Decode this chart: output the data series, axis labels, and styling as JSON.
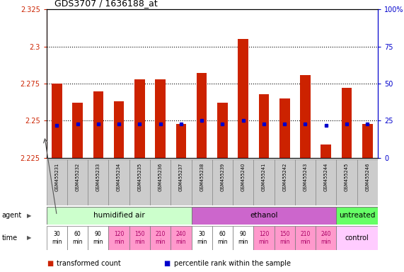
{
  "title": "GDS3707 / 1636188_at",
  "samples": [
    "GSM455231",
    "GSM455232",
    "GSM455233",
    "GSM455234",
    "GSM455235",
    "GSM455236",
    "GSM455237",
    "GSM455238",
    "GSM455239",
    "GSM455240",
    "GSM455241",
    "GSM455242",
    "GSM455243",
    "GSM455244",
    "GSM455245",
    "GSM455246"
  ],
  "transformed_count": [
    2.275,
    2.262,
    2.27,
    2.263,
    2.278,
    2.278,
    2.248,
    2.282,
    2.262,
    2.305,
    2.268,
    2.265,
    2.281,
    2.234,
    2.272,
    2.248
  ],
  "percentile_rank": [
    22,
    23,
    23,
    23,
    23,
    23,
    23,
    25,
    23,
    25,
    23,
    23,
    23,
    22,
    23,
    23
  ],
  "ylim_left": [
    2.225,
    2.325
  ],
  "ylim_right": [
    0,
    100
  ],
  "yticks_left": [
    2.225,
    2.25,
    2.275,
    2.3,
    2.325
  ],
  "yticks_right": [
    0,
    25,
    50,
    75,
    100
  ],
  "ytick_labels_left": [
    "2.225",
    "2.25",
    "2.275",
    "2.3",
    "2.325"
  ],
  "ytick_labels_right": [
    "0",
    "25",
    "50",
    "75",
    "100%"
  ],
  "hlines": [
    2.25,
    2.275,
    2.3
  ],
  "bar_color": "#cc2200",
  "dot_color": "#0000cc",
  "bar_width": 0.5,
  "agent_groups": [
    {
      "label": "humidified air",
      "start": 0,
      "end": 7,
      "color": "#ccffcc"
    },
    {
      "label": "ethanol",
      "start": 7,
      "end": 14,
      "color": "#cc66cc"
    },
    {
      "label": "untreated",
      "start": 14,
      "end": 16,
      "color": "#66ff66"
    }
  ],
  "time_labels": [
    "30\nmin",
    "60\nmin",
    "90\nmin",
    "120\nmin",
    "150\nmin",
    "210\nmin",
    "240\nmin",
    "30\nmin",
    "60\nmin",
    "90\nmin",
    "120\nmin",
    "150\nmin",
    "210\nmin",
    "240\nmin"
  ],
  "time_cell_colors": [
    "#ffffff",
    "#ffffff",
    "#ffffff",
    "#ff99cc",
    "#ff99cc",
    "#ff99cc",
    "#ff99cc",
    "#ffffff",
    "#ffffff",
    "#ffffff",
    "#ff99cc",
    "#ff99cc",
    "#ff99cc",
    "#ff99cc"
  ],
  "time_label_colors": [
    "#000000",
    "#000000",
    "#000000",
    "#aa0066",
    "#aa0066",
    "#aa0066",
    "#aa0066",
    "#000000",
    "#000000",
    "#000000",
    "#aa0066",
    "#aa0066",
    "#aa0066",
    "#aa0066"
  ],
  "control_label": "control",
  "control_color": "#ffccff",
  "legend_items": [
    {
      "label": "transformed count",
      "color": "#cc2200"
    },
    {
      "label": "percentile rank within the sample",
      "color": "#0000cc"
    }
  ],
  "background_color": "#ffffff",
  "plot_bg": "#ffffff",
  "left_axis_color": "#cc2200",
  "right_axis_color": "#0000cc",
  "agent_label": "agent",
  "time_label": "time",
  "sample_cell_color": "#cccccc",
  "sample_cell_border": "#888888"
}
